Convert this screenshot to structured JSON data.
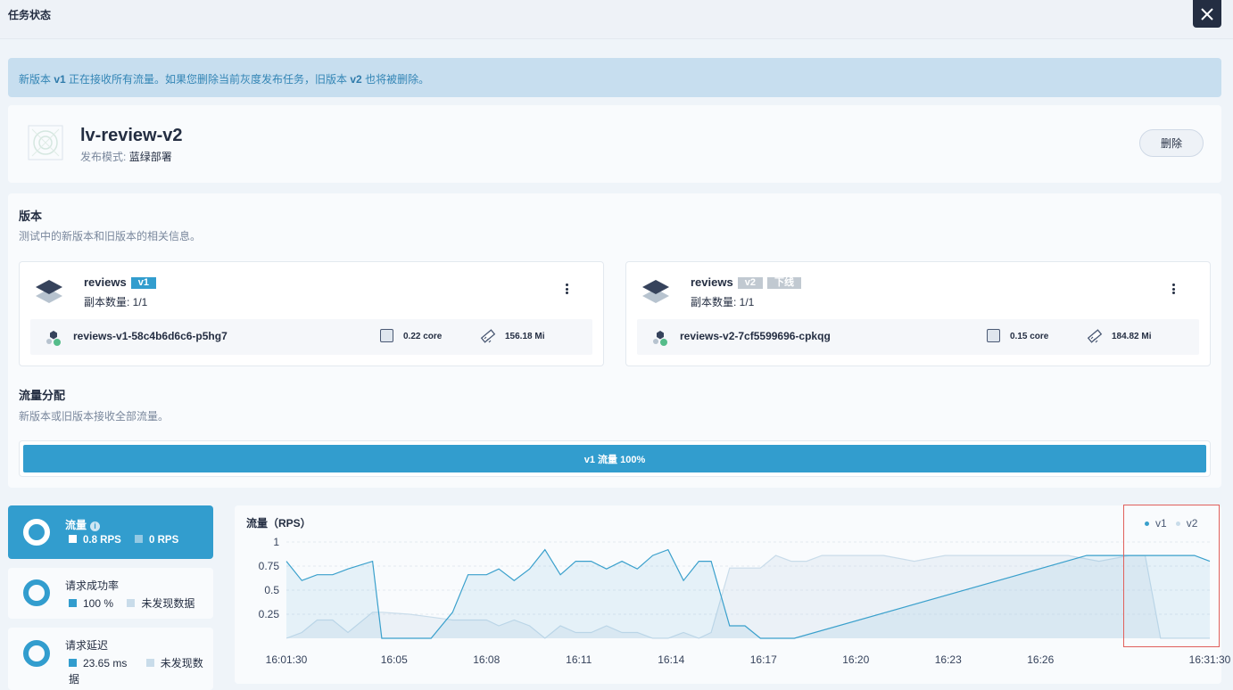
{
  "page": {
    "title": "任务状态"
  },
  "notice": {
    "prefix": "新版本 ",
    "v_new": "v1",
    "middle": " 正在接收所有流量。如果您删除当前灰度发布任务，旧版本 ",
    "v_old": "v2",
    "suffix": " 也将被删除。"
  },
  "job": {
    "name": "lv-review-v2",
    "mode_label": "发布模式:",
    "mode_value": "蓝绿部署",
    "delete_label": "删除"
  },
  "versions_section": {
    "title": "版本",
    "desc": "测试中的新版本和旧版本的相关信息。"
  },
  "versions": [
    {
      "name": "reviews",
      "tag": "v1",
      "tag2": "",
      "replicas": "副本数量: 1/1",
      "pod": "reviews-v1-58c4b6d6c6-p5hg7",
      "cpu": "0.22 core",
      "mem": "156.18 Mi"
    },
    {
      "name": "reviews",
      "tag": "v2",
      "tag2": "下线",
      "replicas": "副本数量: 1/1",
      "pod": "reviews-v2-7cf5599696-cpkqg",
      "cpu": "0.15 core",
      "mem": "184.82 Mi"
    }
  ],
  "traffic_section": {
    "title": "流量分配",
    "desc": "新版本或旧版本接收全部流量。",
    "bar_label": "v1 流量 100%"
  },
  "metrics": [
    {
      "title": "流量",
      "v1": "0.8 RPS",
      "v2": "0 RPS"
    },
    {
      "title": "请求成功率",
      "v1": "100 %",
      "v2": "未发现数据"
    },
    {
      "title": "请求延迟",
      "v1": "23.65 ms",
      "v2": "未发现数据"
    }
  ],
  "colors": {
    "accent": "#329dce",
    "v1_line": "#3aa0cc",
    "v2_line": "#c9dcea",
    "highlight": "#e0605c",
    "dark": "#242e42"
  },
  "icons": {
    "close": "close-icon",
    "project": "project-logo-icon",
    "version": "layers-icon",
    "pod": "pod-icon",
    "cpu": "cpu-icon",
    "memory": "memory-icon",
    "info": "info-icon",
    "more": "more-vertical-icon"
  },
  "chart_data": {
    "type": "area",
    "title": "流量（RPS）",
    "ylim": [
      0,
      1
    ],
    "yticks": [
      "1",
      "0.75",
      "0.5",
      "0.25"
    ],
    "ytick_values": [
      1,
      0.75,
      0.5,
      0.25
    ],
    "xticks": [
      "16:01:30",
      "16:05",
      "16:08",
      "16:11",
      "16:14",
      "16:17",
      "16:20",
      "16:23",
      "16:26",
      "16:31:30"
    ],
    "xtick_minutes": [
      1.5,
      5,
      8,
      11,
      14,
      17,
      20,
      23,
      26,
      31.5
    ],
    "grid": true,
    "legend": "top-right",
    "series": [
      {
        "name": "v1",
        "x": [
          1.5,
          2,
          2.5,
          3,
          3.5,
          4.3,
          4.6,
          5.5,
          6.2,
          6.9,
          7.4,
          8,
          8.4,
          8.9,
          9.4,
          9.9,
          10.4,
          10.9,
          11.4,
          11.9,
          12.4,
          12.9,
          13.4,
          13.9,
          14.4,
          14.9,
          15.3,
          15.9,
          16.4,
          16.9,
          18,
          27.5,
          29,
          31,
          31.5
        ],
        "y": [
          0.8,
          0.6,
          0.66,
          0.66,
          0.72,
          0.8,
          0,
          0,
          0,
          0.27,
          0.66,
          0.66,
          0.72,
          0.6,
          0.72,
          0.92,
          0.66,
          0.8,
          0.8,
          0.72,
          0.8,
          0.72,
          0.86,
          0.92,
          0.6,
          0.8,
          0.8,
          0.13,
          0.13,
          0,
          0,
          0.86,
          0.86,
          0.86,
          0.8
        ]
      },
      {
        "name": "v2",
        "x": [
          1.5,
          2,
          2.5,
          3,
          3.5,
          4.3,
          4.6,
          5.5,
          6.2,
          6.9,
          7.4,
          8,
          8.4,
          8.9,
          9.4,
          9.9,
          10.4,
          10.9,
          11.4,
          11.9,
          12.4,
          12.9,
          13.4,
          13.9,
          14.4,
          14.9,
          15.3,
          15.9,
          16.4,
          16.9,
          17.4,
          17.9,
          18.4,
          18.9,
          19.9,
          20.9,
          21.9,
          22.9,
          23.9,
          24.9,
          25.9,
          26.9,
          27.9,
          28.9,
          29.4,
          29.9,
          31,
          31.5
        ],
        "y": [
          0,
          0.06,
          0.19,
          0.19,
          0.06,
          0.27,
          0.27,
          0.25,
          0.22,
          0.19,
          0.19,
          0.19,
          0.13,
          0.19,
          0.13,
          0,
          0.13,
          0.06,
          0.06,
          0.13,
          0.06,
          0.06,
          0,
          0,
          0.06,
          0,
          0.06,
          0.73,
          0.73,
          0.73,
          0.86,
          0.8,
          0.8,
          0.86,
          0.86,
          0.86,
          0.8,
          0.86,
          0.86,
          0.86,
          0.86,
          0.86,
          0.8,
          0.86,
          0.86,
          0,
          0,
          0
        ]
      }
    ]
  }
}
